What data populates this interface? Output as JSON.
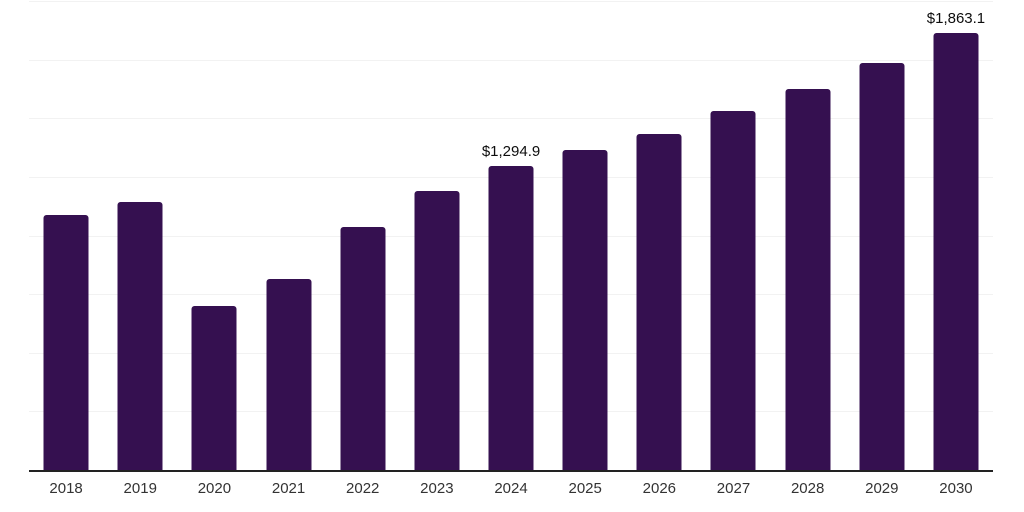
{
  "chart_data": {
    "type": "bar",
    "title": "",
    "xlabel": "",
    "ylabel": "",
    "categories": [
      "2018",
      "2019",
      "2020",
      "2021",
      "2022",
      "2023",
      "2024",
      "2025",
      "2026",
      "2027",
      "2028",
      "2029",
      "2030"
    ],
    "values": [
      1087,
      1142,
      700,
      814,
      1036,
      1189,
      1294.9,
      1363,
      1435,
      1529,
      1623,
      1737,
      1863.1
    ],
    "data_labels": {
      "2024": "$1,294.9",
      "2030": "$1,863.1"
    },
    "ylim": [
      0,
      2000
    ],
    "gridline_step": 250,
    "grid": "horizontal",
    "legend": "none",
    "y_axis_ticks_visible": false
  },
  "colors": {
    "bar": "#351050",
    "axis": "#222222",
    "gridline": "#f2f2f2",
    "tick_label": "#333333",
    "data_label": "#0d0d0d",
    "background": "#ffffff"
  }
}
